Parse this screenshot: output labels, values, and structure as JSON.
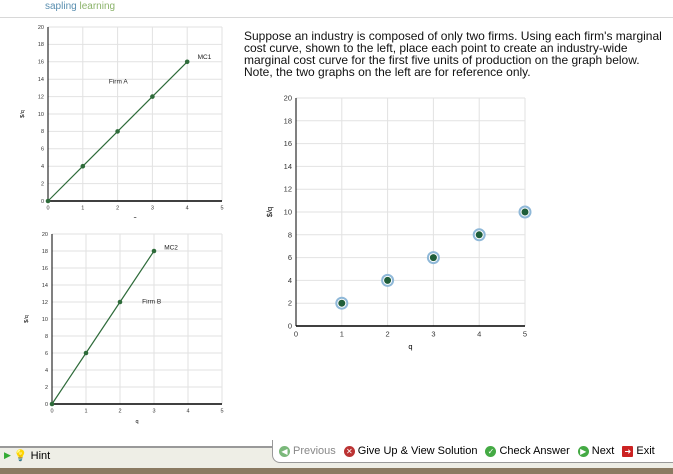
{
  "header": {
    "logo_text_1": "sapling",
    "logo_text_2": "learning"
  },
  "question": "Suppose an industry is composed of only two firms. Using each firm's marginal cost curve, shown to the left, place each point to create an industry-wide marginal cost curve for the first five units of production on the graph below. Note, the two graphs on the left are for reference only.",
  "chart_data": [
    {
      "type": "line",
      "title": "Firm A",
      "series": [
        {
          "name": "MC1",
          "x": [
            0,
            1,
            2,
            3,
            4
          ],
          "y": [
            0,
            4,
            8,
            12,
            16
          ]
        }
      ],
      "xlabel": "q",
      "ylabel": "$/q",
      "xlim": [
        0,
        5
      ],
      "ylim": [
        0,
        20
      ],
      "xticks": [
        0,
        1,
        2,
        3,
        4,
        5
      ],
      "yticks": [
        0,
        2,
        4,
        6,
        8,
        10,
        12,
        14,
        16,
        18,
        20
      ],
      "grid": true,
      "color": "#2e6b3a"
    },
    {
      "type": "line",
      "title": "Firm B",
      "series": [
        {
          "name": "MC2",
          "x": [
            0,
            1,
            2,
            3
          ],
          "y": [
            0,
            6,
            12,
            18
          ]
        }
      ],
      "xlabel": "q",
      "ylabel": "$/q",
      "xlim": [
        0,
        5
      ],
      "ylim": [
        0,
        20
      ],
      "xticks": [
        0,
        1,
        2,
        3,
        4,
        5
      ],
      "yticks": [
        0,
        2,
        4,
        6,
        8,
        10,
        12,
        14,
        16,
        18,
        20
      ],
      "grid": true,
      "color": "#2e6b3a"
    },
    {
      "type": "scatter",
      "series": [
        {
          "x": [
            1,
            2,
            3,
            4,
            5
          ],
          "y": [
            2,
            4,
            6,
            8,
            10
          ]
        }
      ],
      "xlabel": "q",
      "ylabel": "$/q",
      "xlim": [
        0,
        5
      ],
      "ylim": [
        0,
        20
      ],
      "xticks": [
        0,
        1,
        2,
        3,
        4,
        5
      ],
      "yticks": [
        0,
        2,
        4,
        6,
        8,
        10,
        12,
        14,
        16,
        18,
        20
      ],
      "grid": true,
      "color": "#1f5e3a",
      "ring_color": "#8fb8d8"
    }
  ],
  "footer": {
    "hint": "Hint",
    "previous": "Previous",
    "give_up": "Give Up & View Solution",
    "check": "Check Answer",
    "next": "Next",
    "exit": "Exit"
  }
}
